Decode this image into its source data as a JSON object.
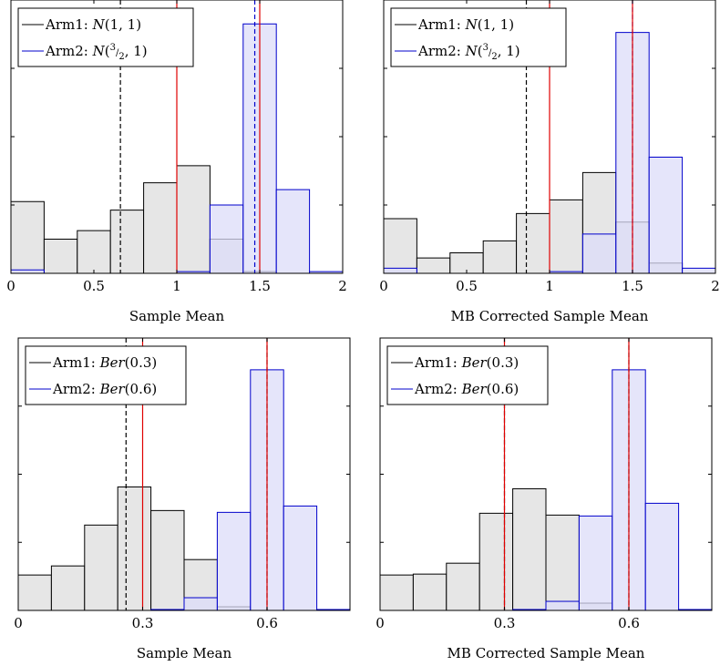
{
  "chart_data": [
    {
      "type": "bar",
      "xlabel": "Sample Mean",
      "xlim": [
        0,
        2
      ],
      "xticks": [
        0,
        0.5,
        1,
        1.5,
        2
      ],
      "xtick_labels": [
        "0",
        "0.5",
        "1",
        "1.5",
        "2"
      ],
      "bin_edges": [
        0,
        0.2,
        0.4,
        0.6,
        0.8,
        1.0,
        1.2,
        1.4,
        1.6,
        1.8,
        2.0
      ],
      "legend_placement": "top-left",
      "series": [
        {
          "name": "Arm1:",
          "dist": "N(1,1)",
          "color": "#000000",
          "fill": "#e6e6e6",
          "values": [
            0.42,
            0.2,
            0.25,
            0.37,
            0.53,
            0.63,
            0.2,
            0.01,
            0,
            0
          ]
        },
        {
          "name": "Arm2:",
          "dist": "N(3/2,1)",
          "color": "#0000cc",
          "fill": "#dcdcf8",
          "values": [
            0.02,
            0,
            0,
            0,
            0,
            0.01,
            0.4,
            1.46,
            0.49,
            0.01
          ]
        }
      ],
      "ylim": [
        0,
        1.6
      ],
      "vlines": [
        {
          "x": 0.66,
          "color": "#000000",
          "style": "dashed"
        },
        {
          "x": 1.0,
          "color": "#e00000",
          "style": "solid"
        },
        {
          "x": 1.47,
          "color": "#0000cc",
          "style": "dashed"
        },
        {
          "x": 1.5,
          "color": "#e00000",
          "style": "solid"
        }
      ]
    },
    {
      "type": "bar",
      "xlabel": "MB Corrected Sample Mean",
      "xlim": [
        0,
        2
      ],
      "xticks": [
        0,
        0.5,
        1,
        1.5,
        2
      ],
      "xtick_labels": [
        "0",
        "0.5",
        "1",
        "1.5",
        "2"
      ],
      "bin_edges": [
        0,
        0.2,
        0.4,
        0.6,
        0.8,
        1.0,
        1.2,
        1.4,
        1.6,
        1.8,
        2.0
      ],
      "legend_placement": "top-left",
      "series": [
        {
          "name": "Arm1:",
          "dist": "N(1,1)",
          "color": "#000000",
          "fill": "#e6e6e6",
          "values": [
            0.32,
            0.09,
            0.12,
            0.19,
            0.35,
            0.43,
            0.59,
            0.3,
            0.06,
            0
          ]
        },
        {
          "name": "Arm2:",
          "dist": "N(3/2,1)",
          "color": "#0000cc",
          "fill": "#dcdcf8",
          "values": [
            0.03,
            0,
            0,
            0,
            0,
            0.01,
            0.23,
            1.41,
            0.68,
            0.03
          ]
        }
      ],
      "ylim": [
        0,
        1.6
      ],
      "vlines": [
        {
          "x": 0.86,
          "color": "#000000",
          "style": "dashed"
        },
        {
          "x": 1.0,
          "color": "#e00000",
          "style": "solid"
        },
        {
          "x": 1.5,
          "color": "#0000cc",
          "style": "dashed"
        },
        {
          "x": 1.5,
          "color": "#e00000",
          "style": "solid"
        }
      ]
    },
    {
      "type": "bar",
      "xlabel": "Sample Mean",
      "xlim": [
        0,
        0.8
      ],
      "xticks": [
        0,
        0.3,
        0.6
      ],
      "xtick_labels": [
        "0",
        "0.3",
        "0.6"
      ],
      "bin_edges": [
        0,
        0.08,
        0.16,
        0.24,
        0.32,
        0.4,
        0.48,
        0.56,
        0.64,
        0.72,
        0.8
      ],
      "legend_placement": "top-left",
      "series": [
        {
          "name": "Arm1:",
          "dist": "Ber(0.3)",
          "color": "#000000",
          "fill": "#e6e6e6",
          "values": [
            0.39,
            0.49,
            0.94,
            1.36,
            1.1,
            0.56,
            0.04,
            0,
            0,
            0
          ]
        },
        {
          "name": "Arm2:",
          "dist": "Ber(0.6)",
          "color": "#0000cc",
          "fill": "#dcdcf8",
          "values": [
            0,
            0,
            0,
            0,
            0.01,
            0.14,
            1.08,
            2.65,
            1.15,
            0.01
          ]
        }
      ],
      "ylim": [
        0,
        3.0
      ],
      "vlines": [
        {
          "x": 0.26,
          "color": "#000000",
          "style": "dashed"
        },
        {
          "x": 0.3,
          "color": "#e00000",
          "style": "solid"
        },
        {
          "x": 0.6,
          "color": "#000000",
          "style": "dashed"
        },
        {
          "x": 0.6,
          "color": "#e00000",
          "style": "solid"
        }
      ]
    },
    {
      "type": "bar",
      "xlabel": "MB Corrected Sample Mean",
      "xlim": [
        0,
        0.8
      ],
      "xticks": [
        0,
        0.3,
        0.6
      ],
      "xtick_labels": [
        "0",
        "0.3",
        "0.6"
      ],
      "bin_edges": [
        0,
        0.08,
        0.16,
        0.24,
        0.32,
        0.4,
        0.48,
        0.56,
        0.64,
        0.72,
        0.8
      ],
      "legend_placement": "top-left",
      "series": [
        {
          "name": "Arm1:",
          "dist": "Ber(0.3)",
          "color": "#000000",
          "fill": "#e6e6e6",
          "values": [
            0.39,
            0.4,
            0.52,
            1.07,
            1.34,
            1.05,
            0.08,
            0,
            0,
            0
          ]
        },
        {
          "name": "Arm2:",
          "dist": "Ber(0.6)",
          "color": "#0000cc",
          "fill": "#dcdcf8",
          "values": [
            0,
            0,
            0,
            0,
            0.01,
            0.1,
            1.04,
            2.65,
            1.18,
            0.01
          ]
        }
      ],
      "ylim": [
        0,
        3.0
      ],
      "vlines": [
        {
          "x": 0.3,
          "color": "#000000",
          "style": "dashed"
        },
        {
          "x": 0.3,
          "color": "#e00000",
          "style": "solid"
        },
        {
          "x": 0.6,
          "color": "#000000",
          "style": "dashed"
        },
        {
          "x": 0.6,
          "color": "#e00000",
          "style": "solid"
        }
      ]
    }
  ]
}
